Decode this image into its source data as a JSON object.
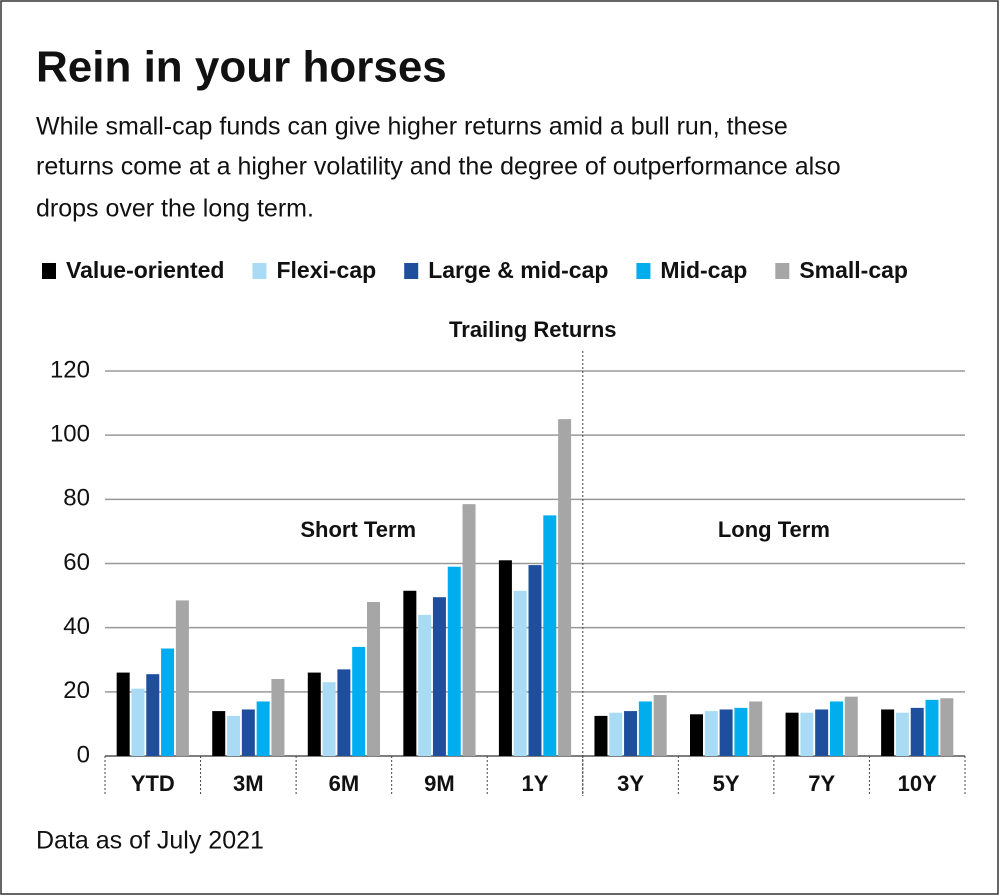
{
  "chart_data": {
    "type": "bar",
    "title": "Rein in your horses",
    "subtitle": [
      "While small-cap funds can give higher returns amid a bull run, these",
      "returns come at a higher volatility and the degree of outperformance also",
      "drops over the long term."
    ],
    "annotations": [
      "Trailing Returns",
      "Short Term",
      "Long Term"
    ],
    "note": "Data as of July 2021",
    "categories": [
      "YTD",
      "3M",
      "6M",
      "9M",
      "1Y",
      "3Y",
      "5Y",
      "7Y",
      "10Y"
    ],
    "series": [
      {
        "name": "Value-oriented",
        "color": "#000000",
        "values": [
          26,
          14,
          26,
          51.5,
          61,
          12.5,
          13,
          13.5,
          14.5
        ]
      },
      {
        "name": "Flexi-cap",
        "color": "#a9dcf4",
        "values": [
          21,
          12.5,
          23,
          44,
          51.5,
          13.5,
          14,
          13.5,
          13.5
        ]
      },
      {
        "name": "Large & mid-cap",
        "color": "#1f4e9c",
        "values": [
          25.5,
          14.5,
          27,
          49.5,
          59.5,
          14,
          14.5,
          14.5,
          15
        ]
      },
      {
        "name": "Mid-cap",
        "color": "#00aeef",
        "values": [
          33.5,
          17,
          34,
          59,
          75,
          17,
          15,
          17,
          17.5
        ]
      },
      {
        "name": "Small-cap",
        "color": "#a6a6a6",
        "values": [
          48.5,
          24,
          48,
          78.5,
          105,
          19,
          17,
          18.5,
          18
        ]
      }
    ],
    "ylim": [
      0,
      120
    ],
    "yticks": [
      0,
      20,
      40,
      60,
      80,
      100,
      120
    ],
    "grid": true,
    "legend": "top"
  }
}
